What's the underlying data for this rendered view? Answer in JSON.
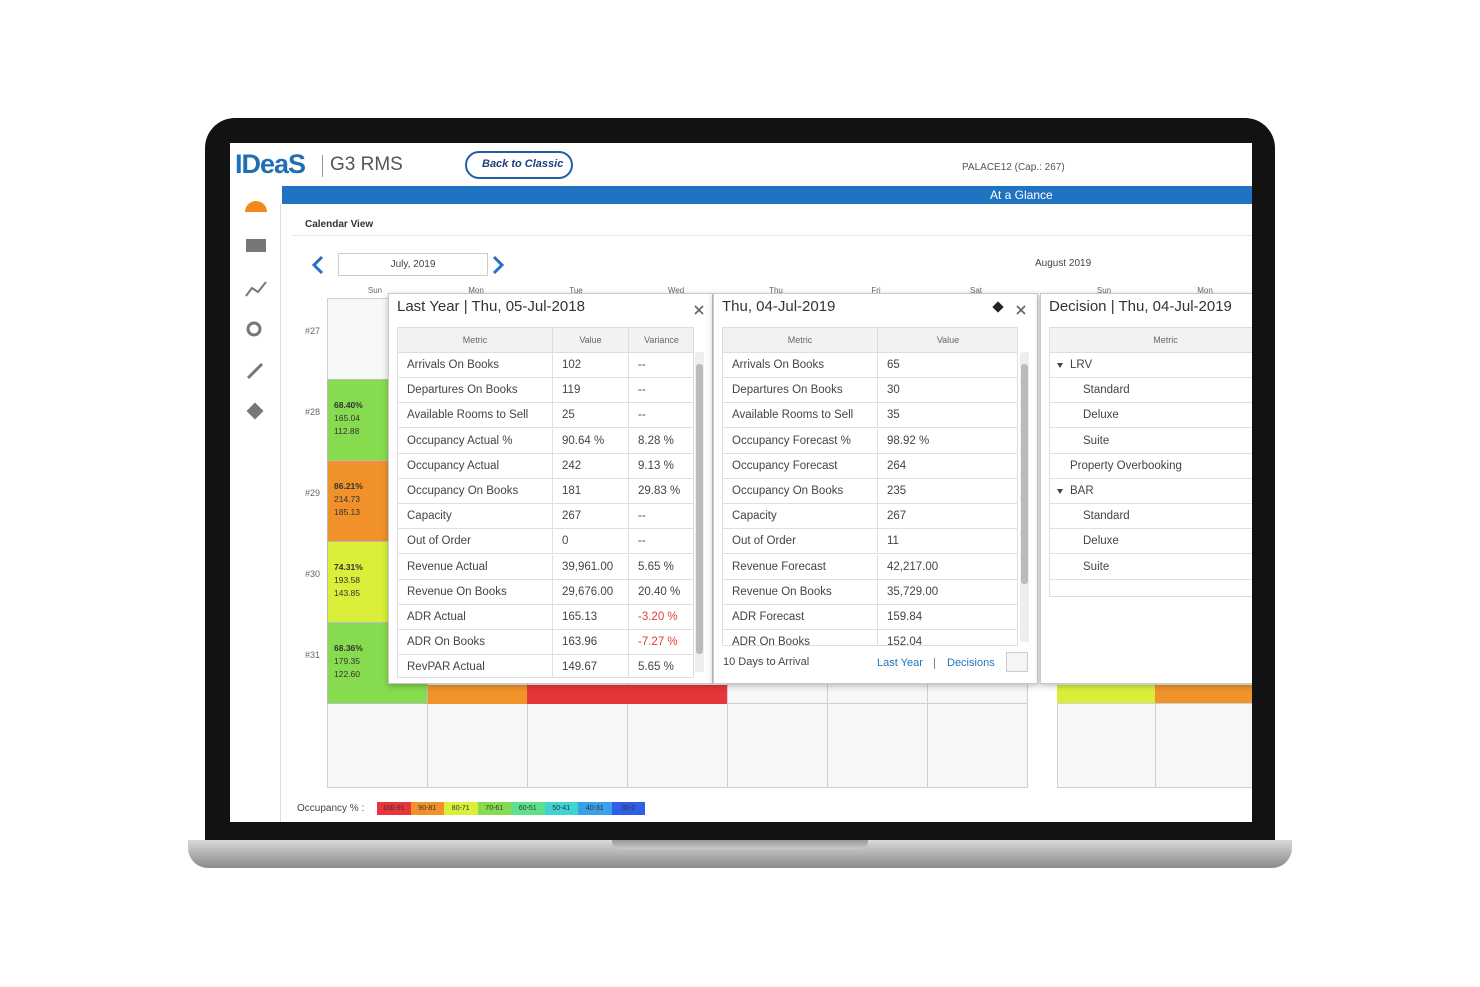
{
  "header": {
    "logo": "IDeaS",
    "product": "G3 RMS",
    "back_button": "Back to Classic",
    "property": "PALACE12 (Cap.: 267)",
    "page_title": "At a Glance"
  },
  "calendar": {
    "title": "Calendar View",
    "month_picker": "July, 2019",
    "next_month": "August 2019",
    "days": [
      "Sun",
      "Mon",
      "Tue",
      "Wed",
      "Thu",
      "Fri",
      "Sat",
      "Sun",
      "Mon"
    ],
    "weeks": [
      {
        "label": "#27"
      },
      {
        "label": "#28",
        "sunday": {
          "color": "#86dc4e",
          "lines": [
            "68.40%",
            "165.04",
            "112.88"
          ]
        }
      },
      {
        "label": "#29",
        "sunday": {
          "color": "#f0912a",
          "lines": [
            "86.21%",
            "214.73",
            "185.13"
          ]
        }
      },
      {
        "label": "#30",
        "sunday": {
          "color": "#d9ef3a",
          "lines": [
            "74.31%",
            "193.58",
            "143.85"
          ]
        }
      },
      {
        "label": "#31",
        "sunday": {
          "color": "#86dc4e",
          "lines": [
            "68.36%",
            "179.35",
            "122.60"
          ]
        }
      }
    ]
  },
  "last_year": {
    "title": "Last Year | Thu, 05-Jul-2018",
    "columns": [
      "Metric",
      "Value",
      "Variance"
    ],
    "rows": [
      [
        "Arrivals On Books",
        "102",
        "--"
      ],
      [
        "Departures On Books",
        "119",
        "--"
      ],
      [
        "Available Rooms to Sell",
        "25",
        "--"
      ],
      [
        "Occupancy Actual %",
        "90.64 %",
        "8.28 %"
      ],
      [
        "Occupancy Actual",
        "242",
        "9.13 %"
      ],
      [
        "Occupancy On Books",
        "181",
        "29.83 %"
      ],
      [
        "Capacity",
        "267",
        "--"
      ],
      [
        "Out of Order",
        "0",
        "--"
      ],
      [
        "Revenue Actual",
        "39,961.00",
        "5.65 %"
      ],
      [
        "Revenue On Books",
        "29,676.00",
        "20.40 %"
      ],
      [
        "ADR Actual",
        "165.13",
        "-3.20 %"
      ],
      [
        "ADR On Books",
        "163.96",
        "-7.27 %"
      ],
      [
        "RevPAR Actual",
        "149.67",
        "5.65 %"
      ]
    ]
  },
  "current": {
    "title": "Thu, 04-Jul-2019",
    "columns": [
      "Metric",
      "Value"
    ],
    "rows": [
      [
        "Arrivals On Books",
        "65"
      ],
      [
        "Departures On Books",
        "30"
      ],
      [
        "Available Rooms to Sell",
        "35"
      ],
      [
        "Occupancy Forecast %",
        "98.92 %"
      ],
      [
        "Occupancy Forecast",
        "264"
      ],
      [
        "Occupancy On Books",
        "235"
      ],
      [
        "Capacity",
        "267"
      ],
      [
        "Out of Order",
        "11"
      ],
      [
        "Revenue Forecast",
        "42,217.00"
      ],
      [
        "Revenue On Books",
        "35,729.00"
      ],
      [
        "ADR Forecast",
        "159.84"
      ],
      [
        "ADR On Books",
        "152.04"
      ]
    ],
    "footer": "10 Days to Arrival",
    "links": [
      "Last Year",
      "Decisions"
    ]
  },
  "decision": {
    "title": "Decision | Thu, 04-Jul-2019",
    "columns": [
      "Metric"
    ],
    "rows": [
      {
        "label": "LRV",
        "expandable": true
      },
      {
        "label": "Standard"
      },
      {
        "label": "Deluxe"
      },
      {
        "label": "Suite"
      },
      {
        "label": "Property Overbooking",
        "top_level": true
      },
      {
        "label": "BAR",
        "expandable": true
      },
      {
        "label": "Standard"
      },
      {
        "label": "Deluxe"
      },
      {
        "label": "Suite"
      }
    ]
  },
  "legend": {
    "label": "Occupancy % :",
    "ranges": [
      {
        "label": "100-91",
        "color": "#e8343c"
      },
      {
        "label": "90-81",
        "color": "#f0912a"
      },
      {
        "label": "80-71",
        "color": "#d9ef3a"
      },
      {
        "label": "70-61",
        "color": "#86dc4e"
      },
      {
        "label": "60-51",
        "color": "#5ee08a"
      },
      {
        "label": "50-41",
        "color": "#3fd3d3"
      },
      {
        "label": "40-31",
        "color": "#3aa0e8"
      },
      {
        "label": "30-0",
        "color": "#2f5ee8"
      }
    ]
  }
}
